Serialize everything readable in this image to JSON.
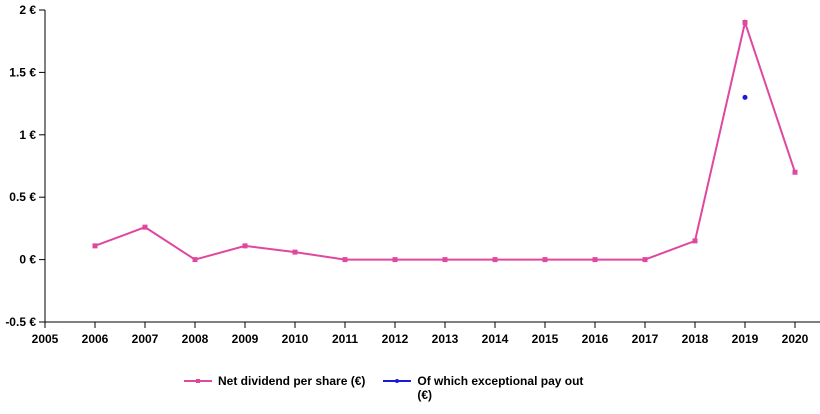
{
  "chart_data": {
    "type": "line",
    "x": [
      2006,
      2007,
      2008,
      2009,
      2010,
      2011,
      2012,
      2013,
      2014,
      2015,
      2016,
      2017,
      2018,
      2019,
      2020
    ],
    "xticks": [
      "2005",
      "2006",
      "2007",
      "2008",
      "2009",
      "2010",
      "2011",
      "2012",
      "2013",
      "2014",
      "2015",
      "2016",
      "2017",
      "2018",
      "2019",
      "2020"
    ],
    "xlim": [
      2005,
      2020
    ],
    "yticks": [
      "2 €",
      "1.5 €",
      "1 €",
      "0.5 €",
      "0 €",
      "-0.5 €"
    ],
    "ylim": [
      -0.5,
      2
    ],
    "series": [
      {
        "name": "Net dividend per share (€)",
        "color": "#e0479e",
        "values": [
          0.11,
          0.26,
          0.0,
          0.11,
          0.06,
          0.0,
          0.0,
          0.0,
          0.0,
          0.0,
          0.0,
          0.0,
          0.15,
          1.9,
          0.7
        ]
      },
      {
        "name": "Of which exceptional pay out (€)",
        "color": "#1a1adb",
        "x": [
          2019
        ],
        "values": [
          1.3
        ]
      }
    ],
    "legend_position": "bottom",
    "grid": false
  }
}
